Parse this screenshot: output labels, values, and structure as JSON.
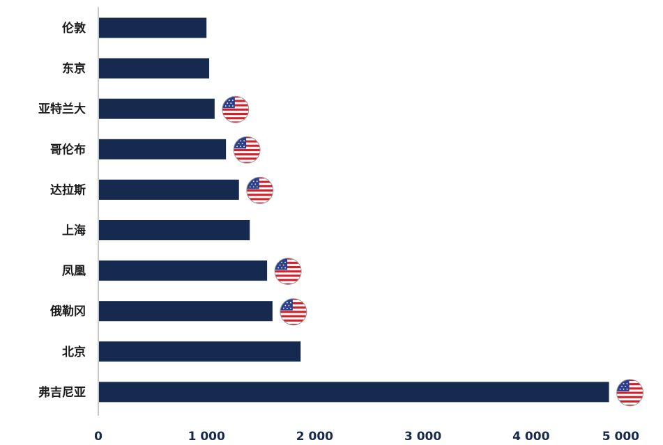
{
  "chart_data": {
    "type": "bar",
    "orientation": "horizontal",
    "categories": [
      "伦敦",
      "东京",
      "亚特兰大",
      "哥伦布",
      "达拉斯",
      "上海",
      "凤凰",
      "俄勒冈",
      "北京",
      "弗吉尼亚"
    ],
    "values": [
      1000,
      1025,
      1075,
      1180,
      1300,
      1400,
      1560,
      1610,
      1870,
      4720
    ],
    "us_flag": [
      false,
      false,
      true,
      true,
      true,
      false,
      true,
      true,
      false,
      true
    ],
    "xlim": [
      0,
      5000
    ],
    "xticks": [
      0,
      1000,
      2000,
      3000,
      4000,
      5000
    ],
    "xtick_labels": [
      "0",
      "1 000",
      "2 000",
      "3 000",
      "4 000",
      "5 000"
    ],
    "grid": false,
    "bar_color": "#162a50",
    "flag_icon": "us-flag-icon"
  }
}
